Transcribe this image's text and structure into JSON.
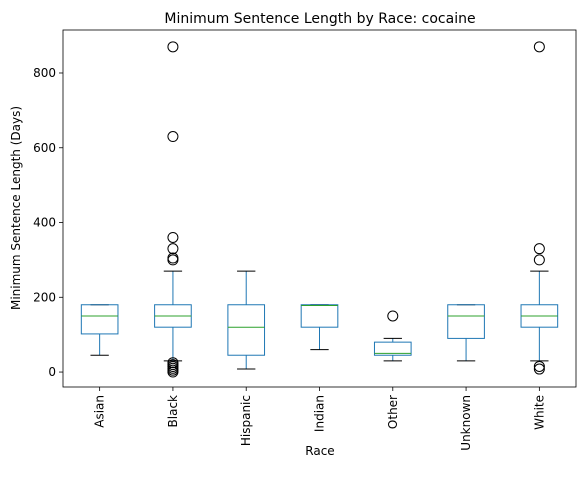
{
  "chart_data": {
    "type": "box",
    "title": "Minimum Sentence Length by Race: cocaine",
    "xlabel": "Race",
    "ylabel": "Minimum Sentence Length (Days)",
    "ylim": [
      -40,
      915
    ],
    "yticks": [
      0,
      200,
      400,
      600,
      800
    ],
    "grid": false,
    "colors": {
      "box": "#1f77b4",
      "whisker": "#1f77b4",
      "cap": "#000000",
      "median": "#2ca02c",
      "flier": "#000000"
    },
    "categories": [
      "Asian",
      "Black",
      "Hispanic",
      "Indian",
      "Other",
      "Unknown",
      "White"
    ],
    "boxes": [
      {
        "category": "Asian",
        "whislo": 45,
        "q1": 102,
        "med": 150,
        "q3": 180,
        "whishi": 180,
        "fliers": []
      },
      {
        "category": "Black",
        "whislo": 30,
        "q1": 120,
        "med": 150,
        "q3": 180,
        "whishi": 270,
        "fliers": [
          0,
          5,
          10,
          15,
          20,
          25,
          300,
          305,
          330,
          360,
          630,
          870
        ]
      },
      {
        "category": "Hispanic",
        "whislo": 8,
        "q1": 45,
        "med": 120,
        "q3": 180,
        "whishi": 270,
        "fliers": []
      },
      {
        "category": "Indian",
        "whislo": 60,
        "q1": 120,
        "med": 178,
        "q3": 180,
        "whishi": 180,
        "fliers": []
      },
      {
        "category": "Other",
        "whislo": 30,
        "q1": 45,
        "med": 50,
        "q3": 80,
        "whishi": 90,
        "fliers": [
          150
        ]
      },
      {
        "category": "Unknown",
        "whislo": 30,
        "q1": 90,
        "med": 150,
        "q3": 180,
        "whishi": 180,
        "fliers": []
      },
      {
        "category": "White",
        "whislo": 30,
        "q1": 120,
        "med": 150,
        "q3": 180,
        "whishi": 270,
        "fliers": [
          8,
          15,
          300,
          330,
          870
        ]
      }
    ]
  }
}
